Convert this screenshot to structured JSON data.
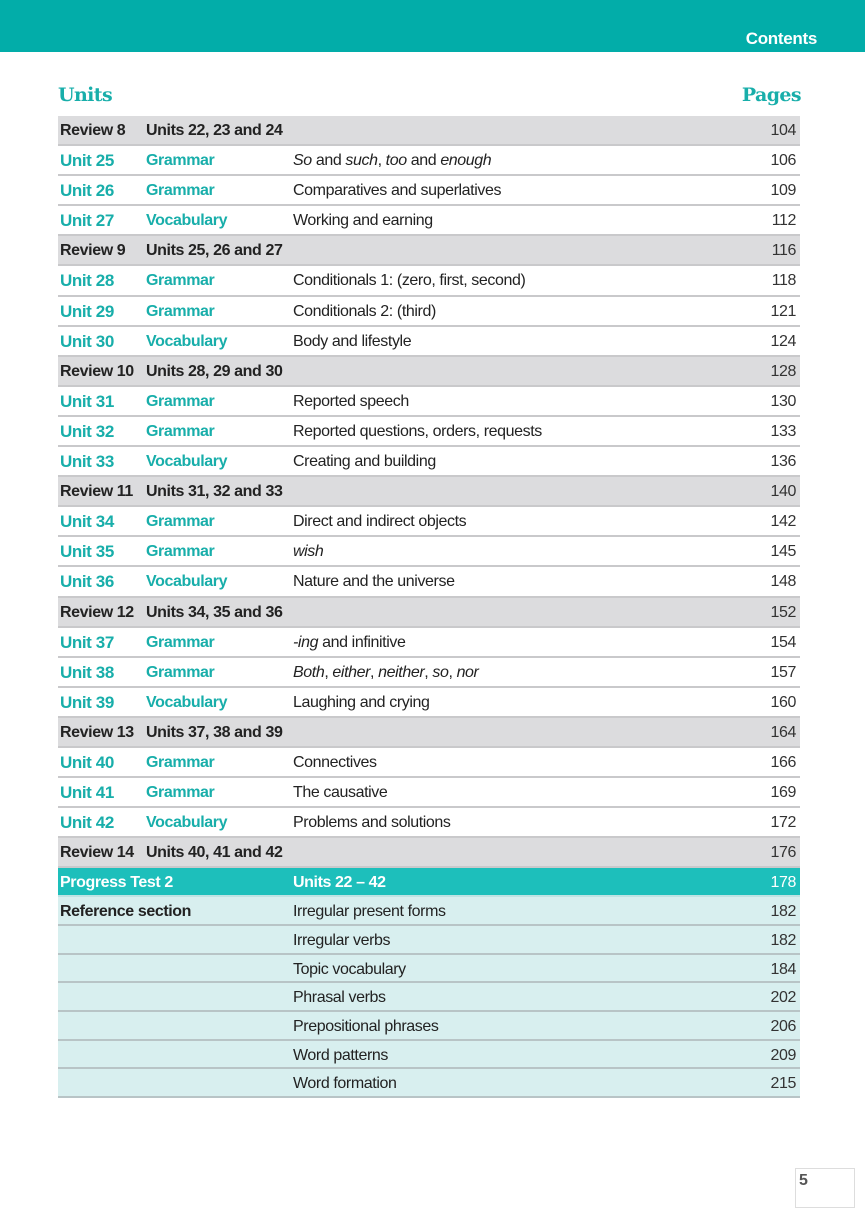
{
  "header": {
    "title": "Contents",
    "color": "#02ada9"
  },
  "columns": {
    "units": "Units",
    "pages": "Pages"
  },
  "rows": [
    {
      "type": "review",
      "c1": "Review 8",
      "c2": "Units 22, 23 and 24",
      "topic": [],
      "page": "104"
    },
    {
      "type": "unit",
      "c1": "Unit 25",
      "c2": "Grammar",
      "topic": [
        {
          "t": "So",
          "i": true
        },
        {
          "t": " and ",
          "i": false
        },
        {
          "t": "such",
          "i": true
        },
        {
          "t": ", ",
          "i": false
        },
        {
          "t": "too",
          "i": true
        },
        {
          "t": " and ",
          "i": false
        },
        {
          "t": "enough",
          "i": true
        }
      ],
      "page": "106"
    },
    {
      "type": "unit",
      "c1": "Unit 26",
      "c2": "Grammar",
      "topic": [
        {
          "t": "Comparatives and superlatives",
          "i": false
        }
      ],
      "page": "109"
    },
    {
      "type": "unit",
      "c1": "Unit 27",
      "c2": "Vocabulary",
      "topic": [
        {
          "t": "Working and earning",
          "i": false
        }
      ],
      "page": "112"
    },
    {
      "type": "review",
      "c1": "Review 9",
      "c2": "Units 25, 26 and 27",
      "topic": [],
      "page": "116"
    },
    {
      "type": "unit",
      "c1": "Unit 28",
      "c2": "Grammar",
      "topic": [
        {
          "t": "Conditionals 1: (zero, first, second)",
          "i": false
        }
      ],
      "page": "118"
    },
    {
      "type": "unit",
      "c1": "Unit 29",
      "c2": "Grammar",
      "topic": [
        {
          "t": "Conditionals 2: (third)",
          "i": false
        }
      ],
      "page": "121"
    },
    {
      "type": "unit",
      "c1": "Unit 30",
      "c2": "Vocabulary",
      "topic": [
        {
          "t": "Body and lifestyle",
          "i": false
        }
      ],
      "page": "124"
    },
    {
      "type": "review",
      "c1": "Review 10",
      "c2": "Units 28, 29 and 30",
      "topic": [],
      "page": "128"
    },
    {
      "type": "unit",
      "c1": "Unit 31",
      "c2": "Grammar",
      "topic": [
        {
          "t": "Reported speech",
          "i": false
        }
      ],
      "page": "130"
    },
    {
      "type": "unit",
      "c1": "Unit 32",
      "c2": "Grammar",
      "topic": [
        {
          "t": "Reported questions, orders, requests",
          "i": false
        }
      ],
      "page": "133"
    },
    {
      "type": "unit",
      "c1": "Unit 33",
      "c2": "Vocabulary",
      "topic": [
        {
          "t": "Creating and building",
          "i": false
        }
      ],
      "page": "136"
    },
    {
      "type": "review",
      "c1": "Review 11",
      "c2": "Units 31, 32 and 33",
      "topic": [],
      "page": "140"
    },
    {
      "type": "unit",
      "c1": "Unit 34",
      "c2": "Grammar",
      "topic": [
        {
          "t": "Direct and indirect objects",
          "i": false
        }
      ],
      "page": "142"
    },
    {
      "type": "unit",
      "c1": "Unit 35",
      "c2": "Grammar",
      "topic": [
        {
          "t": "wish",
          "i": true
        }
      ],
      "page": "145"
    },
    {
      "type": "unit",
      "c1": "Unit 36",
      "c2": "Vocabulary",
      "topic": [
        {
          "t": "Nature and the universe",
          "i": false
        }
      ],
      "page": "148"
    },
    {
      "type": "review",
      "c1": "Review 12",
      "c2": "Units 34, 35 and 36",
      "topic": [],
      "page": "152"
    },
    {
      "type": "unit",
      "c1": "Unit 37",
      "c2": "Grammar",
      "topic": [
        {
          "t": "-ing",
          "i": true
        },
        {
          "t": " and infinitive",
          "i": false
        }
      ],
      "page": "154"
    },
    {
      "type": "unit",
      "c1": "Unit 38",
      "c2": "Grammar",
      "topic": [
        {
          "t": "Both",
          "i": true
        },
        {
          "t": ", ",
          "i": false
        },
        {
          "t": "either",
          "i": true
        },
        {
          "t": ", ",
          "i": false
        },
        {
          "t": "neither",
          "i": true
        },
        {
          "t": ", ",
          "i": false
        },
        {
          "t": "so",
          "i": true
        },
        {
          "t": ", ",
          "i": false
        },
        {
          "t": "nor",
          "i": true
        }
      ],
      "page": "157"
    },
    {
      "type": "unit",
      "c1": "Unit 39",
      "c2": "Vocabulary",
      "topic": [
        {
          "t": "Laughing and crying",
          "i": false
        }
      ],
      "page": "160"
    },
    {
      "type": "review",
      "c1": "Review 13",
      "c2": "Units 37, 38 and 39",
      "topic": [],
      "page": "164"
    },
    {
      "type": "unit",
      "c1": "Unit 40",
      "c2": "Grammar",
      "topic": [
        {
          "t": "Connectives",
          "i": false
        }
      ],
      "page": "166"
    },
    {
      "type": "unit",
      "c1": "Unit 41",
      "c2": "Grammar",
      "topic": [
        {
          "t": "The causative",
          "i": false
        }
      ],
      "page": "169"
    },
    {
      "type": "unit",
      "c1": "Unit 42",
      "c2": "Vocabulary",
      "topic": [
        {
          "t": "Problems and solutions",
          "i": false
        }
      ],
      "page": "172"
    },
    {
      "type": "review",
      "c1": "Review 14",
      "c2": "Units 40, 41 and 42",
      "topic": [],
      "page": "176"
    },
    {
      "type": "progress",
      "c1": "Progress Test 2",
      "c2": "",
      "topic": [
        {
          "t": "Units 22 – 42",
          "i": false
        }
      ],
      "page": "178"
    },
    {
      "type": "ref",
      "c1": "Reference section",
      "c2": "",
      "topic": [
        {
          "t": "Irregular present forms",
          "i": false
        }
      ],
      "page": "182"
    },
    {
      "type": "ref",
      "c1": "",
      "c2": "",
      "topic": [
        {
          "t": "Irregular verbs",
          "i": false
        }
      ],
      "page": "182"
    },
    {
      "type": "ref",
      "c1": "",
      "c2": "",
      "topic": [
        {
          "t": "Topic vocabulary",
          "i": false
        }
      ],
      "page": "184"
    },
    {
      "type": "ref",
      "c1": "",
      "c2": "",
      "topic": [
        {
          "t": "Phrasal verbs",
          "i": false
        }
      ],
      "page": "202"
    },
    {
      "type": "ref",
      "c1": "",
      "c2": "",
      "topic": [
        {
          "t": "Prepositional phrases",
          "i": false
        }
      ],
      "page": "206"
    },
    {
      "type": "ref",
      "c1": "",
      "c2": "",
      "topic": [
        {
          "t": "Word patterns",
          "i": false
        }
      ],
      "page": "209"
    },
    {
      "type": "ref",
      "c1": "",
      "c2": "",
      "topic": [
        {
          "t": "Word formation",
          "i": false
        }
      ],
      "page": "215"
    }
  ],
  "footer": {
    "page_number": "5"
  }
}
